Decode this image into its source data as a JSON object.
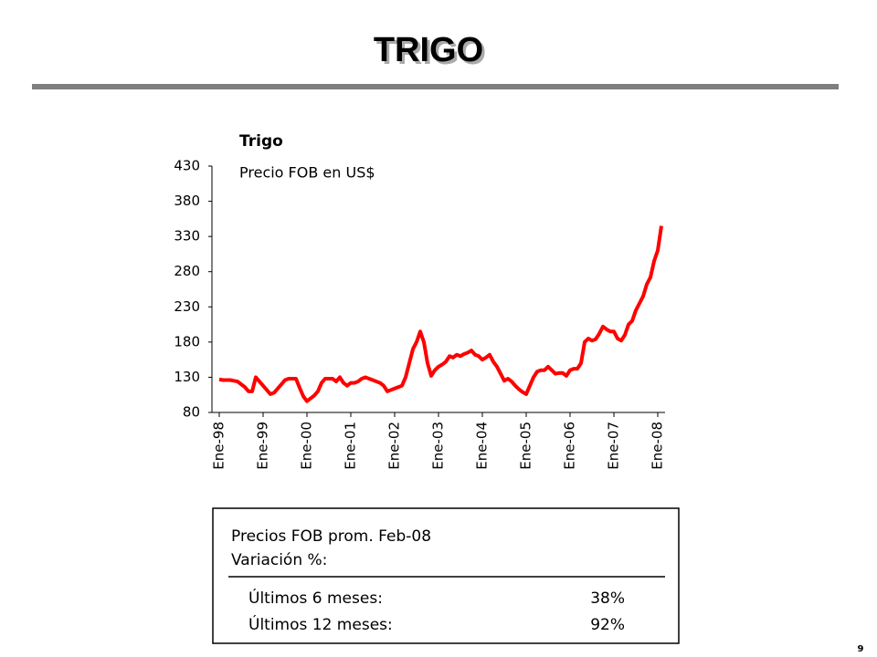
{
  "header": {
    "title": "TRIGO"
  },
  "chart_data": {
    "type": "line",
    "title": "Trigo",
    "subtitle": "Precio FOB en US$",
    "categories": [
      "Ene-98",
      null,
      null,
      null,
      null,
      null,
      null,
      null,
      null,
      null,
      null,
      null,
      "Ene-99",
      null,
      null,
      null,
      null,
      null,
      null,
      null,
      null,
      null,
      null,
      null,
      "Ene-00",
      null,
      null,
      null,
      null,
      null,
      null,
      null,
      null,
      null,
      null,
      null,
      "Ene-01",
      null,
      null,
      null,
      null,
      null,
      null,
      null,
      null,
      null,
      null,
      null,
      "Ene-02",
      null,
      null,
      null,
      null,
      null,
      null,
      null,
      null,
      null,
      null,
      null,
      "Ene-03",
      null,
      null,
      null,
      null,
      null,
      null,
      null,
      null,
      null,
      null,
      null,
      "Ene-04",
      null,
      null,
      null,
      null,
      null,
      null,
      null,
      null,
      null,
      null,
      null,
      "Ene-05",
      null,
      null,
      null,
      null,
      null,
      null,
      null,
      null,
      null,
      null,
      null,
      "Ene-06",
      null,
      null,
      null,
      null,
      null,
      null,
      null,
      null,
      null,
      null,
      null,
      "Ene-07",
      null,
      null,
      null,
      null,
      null,
      null,
      null,
      null,
      null,
      null,
      null,
      "Ene-08",
      null
    ],
    "series": [
      {
        "name": "Trigo",
        "color": "#ff0000",
        "values": [
          127,
          126,
          126,
          126,
          125,
          124,
          120,
          116,
          110,
          110,
          130,
          124,
          118,
          112,
          106,
          108,
          114,
          120,
          126,
          128,
          128,
          128,
          115,
          103,
          96,
          100,
          104,
          110,
          122,
          128,
          128,
          128,
          124,
          130,
          122,
          118,
          122,
          122,
          124,
          128,
          130,
          128,
          126,
          124,
          122,
          118,
          110,
          112,
          114,
          116,
          118,
          130,
          150,
          170,
          180,
          195,
          180,
          150,
          132,
          140,
          145,
          148,
          152,
          160,
          158,
          162,
          160,
          163,
          165,
          168,
          162,
          160,
          155,
          158,
          162,
          152,
          145,
          135,
          125,
          128,
          124,
          118,
          113,
          109,
          106,
          118,
          130,
          138,
          140,
          140,
          145,
          140,
          135,
          136,
          136,
          132,
          140,
          142,
          142,
          150,
          180,
          185,
          182,
          184,
          192,
          202,
          198,
          195,
          195,
          185,
          182,
          190,
          205,
          210,
          225,
          235,
          245,
          262,
          272,
          295,
          310,
          345
        ]
      }
    ],
    "ylim": [
      80,
      430
    ],
    "yticks": [
      80,
      130,
      180,
      230,
      280,
      330,
      380,
      430
    ],
    "grid": false
  },
  "summary": {
    "title": "Precios FOB prom. Feb-08",
    "subtitle": "Variación %:",
    "rows": [
      [
        "Últimos 6 meses:",
        "38%"
      ],
      [
        "Últimos 12 meses:",
        "92%"
      ]
    ]
  },
  "page_number": "9"
}
